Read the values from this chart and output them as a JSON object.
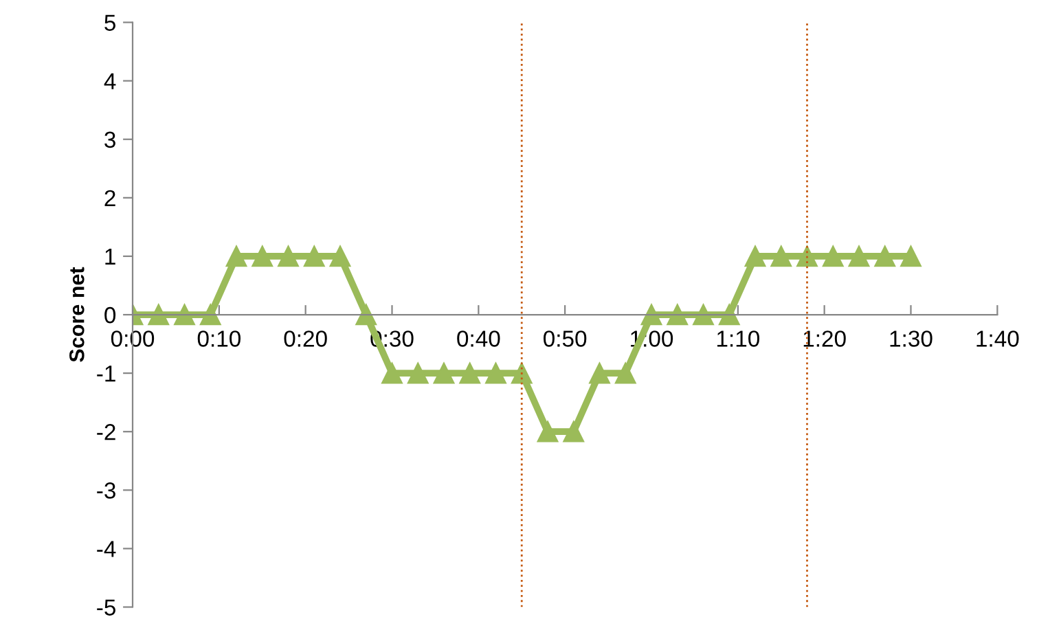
{
  "chart_data": {
    "type": "line",
    "ylabel": "Score net",
    "x": [
      0,
      0.05,
      0.1,
      0.15,
      0.2,
      0.25,
      0.3,
      0.35,
      0.4,
      0.45,
      0.5,
      0.55,
      0.6,
      0.65,
      0.7,
      0.75,
      0.8,
      0.85,
      0.9,
      0.95,
      1.0,
      1.05,
      1.1,
      1.15,
      1.2,
      1.25,
      1.3,
      1.35,
      1.4,
      1.45,
      1.5
    ],
    "series": [
      {
        "color": "#9bbb59",
        "values": [
          0,
          0,
          0,
          0,
          1,
          1,
          1,
          1,
          1,
          0,
          -1,
          -1,
          -1,
          -1,
          -1,
          -1,
          -2,
          -2,
          -1,
          -1,
          0,
          0,
          0,
          0,
          1,
          1,
          1,
          1,
          1,
          1,
          1
        ]
      }
    ],
    "marker": "triangle",
    "line_style": "solid",
    "grid": false,
    "legend": false,
    "xlim": [
      0,
      1.6667
    ],
    "ylim": [
      -5,
      5
    ],
    "xticks": [
      {
        "value": 0,
        "label": "0:00"
      },
      {
        "value": 0.1667,
        "label": "0:10"
      },
      {
        "value": 0.3333,
        "label": "0:20"
      },
      {
        "value": 0.5,
        "label": "0:30"
      },
      {
        "value": 0.6667,
        "label": "0:40"
      },
      {
        "value": 0.8333,
        "label": "0:50"
      },
      {
        "value": 1.0,
        "label": "1:00"
      },
      {
        "value": 1.1667,
        "label": "1:10"
      },
      {
        "value": 1.3333,
        "label": "1:20"
      },
      {
        "value": 1.5,
        "label": "1:30"
      },
      {
        "value": 1.6667,
        "label": "1:40"
      }
    ],
    "yticks": [
      -5,
      -4,
      -3,
      -2,
      -1,
      0,
      1,
      2,
      3,
      4,
      5
    ],
    "ref_lines": [
      {
        "axis": "x",
        "value": 0.75,
        "color": "#c55a11",
        "line_style": "dotted"
      },
      {
        "axis": "x",
        "value": 1.3,
        "color": "#c55a11",
        "line_style": "dotted"
      }
    ]
  }
}
